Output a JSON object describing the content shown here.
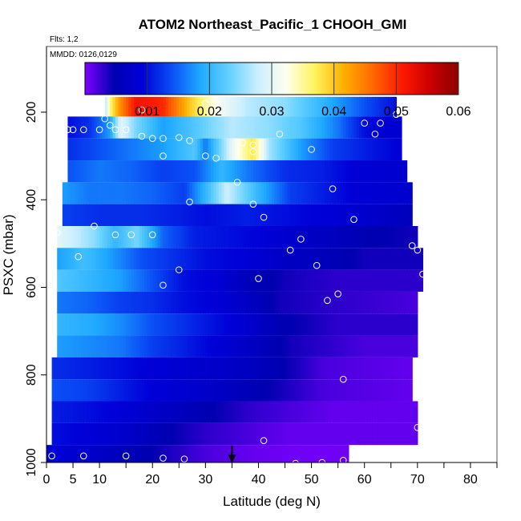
{
  "chart_data": {
    "type": "heatmap",
    "title": "ATOM2 Northeast_Pacific_1 CHOOH_GMI",
    "flts_label": "Flts: 1,2",
    "mmdd_label": "MMDD: 0126,0129",
    "xlabel": "Latitude (deg N)",
    "ylabel": "PSXC (mbar)",
    "xlim": [
      0,
      85
    ],
    "ylim": [
      1000,
      50
    ],
    "x_ticks": [
      "0",
      "5",
      "10",
      "20",
      "30",
      "40",
      "50",
      "60",
      "70",
      "80"
    ],
    "x_tick_values": [
      0,
      5,
      10,
      20,
      30,
      40,
      50,
      60,
      70,
      80
    ],
    "x_minor_ticks": [
      15,
      25,
      35,
      45,
      55,
      65,
      75,
      85
    ],
    "y_ticks": [
      "200",
      "400",
      "600",
      "800",
      "1000"
    ],
    "y_tick_values": [
      200,
      400,
      600,
      800,
      1000
    ],
    "colorbar": {
      "range": [
        0,
        0.06
      ],
      "ticks": [
        "0.01",
        "0.02",
        "0.03",
        "0.04",
        "0.05",
        "0.06"
      ],
      "tick_values": [
        0.01,
        0.02,
        0.03,
        0.04,
        0.05,
        0.06
      ],
      "colors": [
        "#7f00ff",
        "#0000b0",
        "#0000d8",
        "#0a4df5",
        "#1ea8ff",
        "#62d0ff",
        "#c9eeff",
        "#fffff0",
        "#fff35c",
        "#ffb000",
        "#ff6a00",
        "#ff1a00",
        "#cc0000",
        "#8b0000"
      ]
    },
    "arrow_latitude": 35,
    "layers": [
      {
        "p_top": 165,
        "p_bot": 210,
        "lat_min": 11,
        "lat_max": 66,
        "stops": [
          [
            11,
            0.026
          ],
          [
            12,
            0.036
          ],
          [
            14,
            0.044
          ],
          [
            17,
            0.052
          ],
          [
            22,
            0.05
          ],
          [
            27,
            0.04
          ],
          [
            32,
            0.032
          ],
          [
            38,
            0.027
          ],
          [
            45,
            0.025
          ],
          [
            52,
            0.02
          ],
          [
            60,
            0.014
          ],
          [
            66,
            0.01
          ]
        ]
      },
      {
        "p_top": 210,
        "p_bot": 260,
        "lat_min": 4,
        "lat_max": 67,
        "stops": [
          [
            4,
            0.01
          ],
          [
            8,
            0.012
          ],
          [
            12,
            0.018
          ],
          [
            14,
            0.03
          ],
          [
            17,
            0.024
          ],
          [
            22,
            0.018
          ],
          [
            28,
            0.022
          ],
          [
            35,
            0.027
          ],
          [
            42,
            0.025
          ],
          [
            48,
            0.022
          ],
          [
            55,
            0.016
          ],
          [
            60,
            0.01
          ],
          [
            67,
            0.008
          ]
        ]
      },
      {
        "p_top": 260,
        "p_bot": 310,
        "lat_min": 4,
        "lat_max": 67,
        "stops": [
          [
            4,
            0.012
          ],
          [
            10,
            0.014
          ],
          [
            16,
            0.016
          ],
          [
            22,
            0.018
          ],
          [
            28,
            0.022
          ],
          [
            30,
            0.016
          ],
          [
            35,
            0.03
          ],
          [
            39,
            0.038
          ],
          [
            42,
            0.026
          ],
          [
            48,
            0.018
          ],
          [
            54,
            0.013
          ],
          [
            60,
            0.011
          ],
          [
            67,
            0.009
          ]
        ]
      },
      {
        "p_top": 310,
        "p_bot": 360,
        "lat_min": 4,
        "lat_max": 68,
        "stops": [
          [
            4,
            0.014
          ],
          [
            10,
            0.016
          ],
          [
            16,
            0.015
          ],
          [
            22,
            0.013
          ],
          [
            28,
            0.014
          ],
          [
            33,
            0.02
          ],
          [
            38,
            0.016
          ],
          [
            45,
            0.012
          ],
          [
            52,
            0.011
          ],
          [
            58,
            0.009
          ],
          [
            68,
            0.008
          ]
        ]
      },
      {
        "p_top": 360,
        "p_bot": 410,
        "lat_min": 3,
        "lat_max": 69,
        "stops": [
          [
            3,
            0.018
          ],
          [
            8,
            0.016
          ],
          [
            14,
            0.016
          ],
          [
            20,
            0.015
          ],
          [
            26,
            0.013
          ],
          [
            30,
            0.02
          ],
          [
            34,
            0.028
          ],
          [
            40,
            0.02
          ],
          [
            46,
            0.013
          ],
          [
            52,
            0.011
          ],
          [
            58,
            0.009
          ],
          [
            69,
            0.008
          ]
        ]
      },
      {
        "p_top": 410,
        "p_bot": 460,
        "lat_min": 3,
        "lat_max": 69,
        "stops": [
          [
            3,
            0.013
          ],
          [
            10,
            0.012
          ],
          [
            18,
            0.012
          ],
          [
            25,
            0.011
          ],
          [
            30,
            0.01
          ],
          [
            38,
            0.011
          ],
          [
            45,
            0.01
          ],
          [
            52,
            0.009
          ],
          [
            60,
            0.008
          ],
          [
            69,
            0.006
          ]
        ]
      },
      {
        "p_top": 460,
        "p_bot": 510,
        "lat_min": 2,
        "lat_max": 70,
        "stops": [
          [
            2,
            0.03
          ],
          [
            5,
            0.028
          ],
          [
            9,
            0.025
          ],
          [
            13,
            0.02
          ],
          [
            17,
            0.024
          ],
          [
            22,
            0.015
          ],
          [
            28,
            0.011
          ],
          [
            35,
            0.01
          ],
          [
            42,
            0.009
          ],
          [
            50,
            0.007
          ],
          [
            60,
            0.005
          ],
          [
            70,
            0.004
          ]
        ]
      },
      {
        "p_top": 510,
        "p_bot": 560,
        "lat_min": 2,
        "lat_max": 71,
        "stops": [
          [
            2,
            0.018
          ],
          [
            7,
            0.021
          ],
          [
            12,
            0.018
          ],
          [
            18,
            0.014
          ],
          [
            24,
            0.012
          ],
          [
            30,
            0.01
          ],
          [
            38,
            0.009
          ],
          [
            45,
            0.007
          ],
          [
            52,
            0.006
          ],
          [
            60,
            0.004
          ],
          [
            71,
            0.004
          ]
        ]
      },
      {
        "p_top": 560,
        "p_bot": 610,
        "lat_min": 2,
        "lat_max": 71,
        "stops": [
          [
            2,
            0.022
          ],
          [
            8,
            0.02
          ],
          [
            14,
            0.018
          ],
          [
            20,
            0.014
          ],
          [
            26,
            0.01
          ],
          [
            32,
            0.009
          ],
          [
            38,
            0.006
          ],
          [
            45,
            0.004
          ],
          [
            55,
            0.003
          ],
          [
            65,
            0.003
          ],
          [
            71,
            0.003
          ]
        ]
      },
      {
        "p_top": 610,
        "p_bot": 660,
        "lat_min": 2,
        "lat_max": 70,
        "stops": [
          [
            2,
            0.016
          ],
          [
            8,
            0.015
          ],
          [
            14,
            0.013
          ],
          [
            20,
            0.012
          ],
          [
            26,
            0.01
          ],
          [
            32,
            0.009
          ],
          [
            38,
            0.007
          ],
          [
            44,
            0.004
          ],
          [
            55,
            0.003
          ],
          [
            70,
            0.002
          ]
        ]
      },
      {
        "p_top": 660,
        "p_bot": 710,
        "lat_min": 2,
        "lat_max": 70,
        "stops": [
          [
            2,
            0.02
          ],
          [
            8,
            0.019
          ],
          [
            14,
            0.017
          ],
          [
            20,
            0.014
          ],
          [
            26,
            0.012
          ],
          [
            32,
            0.01
          ],
          [
            38,
            0.008
          ],
          [
            44,
            0.005
          ],
          [
            55,
            0.003
          ],
          [
            70,
            0.003
          ]
        ]
      },
      {
        "p_top": 710,
        "p_bot": 760,
        "lat_min": 2,
        "lat_max": 70,
        "stops": [
          [
            2,
            0.018
          ],
          [
            8,
            0.017
          ],
          [
            14,
            0.016
          ],
          [
            20,
            0.013
          ],
          [
            26,
            0.011
          ],
          [
            32,
            0.009
          ],
          [
            38,
            0.007
          ],
          [
            46,
            0.004
          ],
          [
            60,
            0.002
          ],
          [
            70,
            0.002
          ]
        ]
      },
      {
        "p_top": 760,
        "p_bot": 810,
        "lat_min": 1,
        "lat_max": 69,
        "stops": [
          [
            1,
            0.012
          ],
          [
            8,
            0.011
          ],
          [
            14,
            0.01
          ],
          [
            20,
            0.009
          ],
          [
            28,
            0.008
          ],
          [
            36,
            0.007
          ],
          [
            44,
            0.005
          ],
          [
            52,
            0.002
          ],
          [
            69,
            0.001
          ]
        ]
      },
      {
        "p_top": 810,
        "p_bot": 860,
        "lat_min": 1,
        "lat_max": 69,
        "stops": [
          [
            1,
            0.014
          ],
          [
            8,
            0.013
          ],
          [
            14,
            0.011
          ],
          [
            20,
            0.009
          ],
          [
            28,
            0.008
          ],
          [
            36,
            0.006
          ],
          [
            44,
            0.004
          ],
          [
            52,
            0.002
          ],
          [
            69,
            0.001
          ]
        ]
      },
      {
        "p_top": 860,
        "p_bot": 910,
        "lat_min": 1,
        "lat_max": 70,
        "stops": [
          [
            1,
            0.011
          ],
          [
            8,
            0.01
          ],
          [
            14,
            0.009
          ],
          [
            22,
            0.007
          ],
          [
            30,
            0.005
          ],
          [
            38,
            0.003
          ],
          [
            46,
            0.002
          ],
          [
            54,
            0.001
          ],
          [
            70,
            0.001
          ]
        ]
      },
      {
        "p_top": 910,
        "p_bot": 960,
        "lat_min": 1,
        "lat_max": 70,
        "stops": [
          [
            1,
            0.01
          ],
          [
            8,
            0.009
          ],
          [
            14,
            0.008
          ],
          [
            22,
            0.005
          ],
          [
            30,
            0.003
          ],
          [
            38,
            0.002
          ],
          [
            46,
            0.001
          ],
          [
            56,
            0.001
          ],
          [
            70,
            0.001
          ]
        ]
      },
      {
        "p_top": 960,
        "p_bot": 1000,
        "lat_min": 0,
        "lat_max": 57,
        "stops": [
          [
            0,
            0.009
          ],
          [
            8,
            0.008
          ],
          [
            14,
            0.006
          ],
          [
            22,
            0.004
          ],
          [
            30,
            0.002
          ],
          [
            38,
            0.001
          ],
          [
            48,
            0.0005
          ],
          [
            57,
            0.0005
          ]
        ]
      }
    ],
    "observations": [
      {
        "lat": 11,
        "p": 215
      },
      {
        "lat": 12,
        "p": 230
      },
      {
        "lat": 18,
        "p": 195
      },
      {
        "lat": 30,
        "p": 180
      },
      {
        "lat": 60,
        "p": 225
      },
      {
        "lat": 63,
        "p": 225
      },
      {
        "lat": 66,
        "p": 205
      },
      {
        "lat": 62,
        "p": 250
      },
      {
        "lat": 4,
        "p": 240
      },
      {
        "lat": 5,
        "p": 240
      },
      {
        "lat": 7,
        "p": 240
      },
      {
        "lat": 10,
        "p": 240
      },
      {
        "lat": 13,
        "p": 240
      },
      {
        "lat": 15,
        "p": 240
      },
      {
        "lat": 18,
        "p": 255
      },
      {
        "lat": 20,
        "p": 260
      },
      {
        "lat": 22,
        "p": 260
      },
      {
        "lat": 25,
        "p": 258
      },
      {
        "lat": 27,
        "p": 265
      },
      {
        "lat": 44,
        "p": 250
      },
      {
        "lat": 22,
        "p": 300
      },
      {
        "lat": 30,
        "p": 300
      },
      {
        "lat": 32,
        "p": 305
      },
      {
        "lat": 37,
        "p": 270
      },
      {
        "lat": 39,
        "p": 275
      },
      {
        "lat": 39,
        "p": 290
      },
      {
        "lat": 50,
        "p": 285
      },
      {
        "lat": 36,
        "p": 360
      },
      {
        "lat": 54,
        "p": 375
      },
      {
        "lat": 27,
        "p": 405
      },
      {
        "lat": 39,
        "p": 410
      },
      {
        "lat": 41,
        "p": 440
      },
      {
        "lat": 58,
        "p": 445
      },
      {
        "lat": 9,
        "p": 460
      },
      {
        "lat": 2,
        "p": 475
      },
      {
        "lat": 13,
        "p": 480
      },
      {
        "lat": 16,
        "p": 480
      },
      {
        "lat": 20,
        "p": 480
      },
      {
        "lat": 48,
        "p": 490
      },
      {
        "lat": 46,
        "p": 515
      },
      {
        "lat": 69,
        "p": 505
      },
      {
        "lat": 70,
        "p": 515
      },
      {
        "lat": 6,
        "p": 530
      },
      {
        "lat": 51,
        "p": 550
      },
      {
        "lat": 25,
        "p": 560
      },
      {
        "lat": 71,
        "p": 570
      },
      {
        "lat": 40,
        "p": 580
      },
      {
        "lat": 22,
        "p": 595
      },
      {
        "lat": 55,
        "p": 615
      },
      {
        "lat": 53,
        "p": 630
      },
      {
        "lat": 56,
        "p": 810
      },
      {
        "lat": 70,
        "p": 920
      },
      {
        "lat": 41,
        "p": 950
      },
      {
        "lat": 1,
        "p": 985
      },
      {
        "lat": 7,
        "p": 985
      },
      {
        "lat": 15,
        "p": 985
      },
      {
        "lat": 22,
        "p": 990
      },
      {
        "lat": 26,
        "p": 992
      },
      {
        "lat": 47,
        "p": 1002
      },
      {
        "lat": 52,
        "p": 1000
      },
      {
        "lat": 56,
        "p": 995
      }
    ]
  }
}
